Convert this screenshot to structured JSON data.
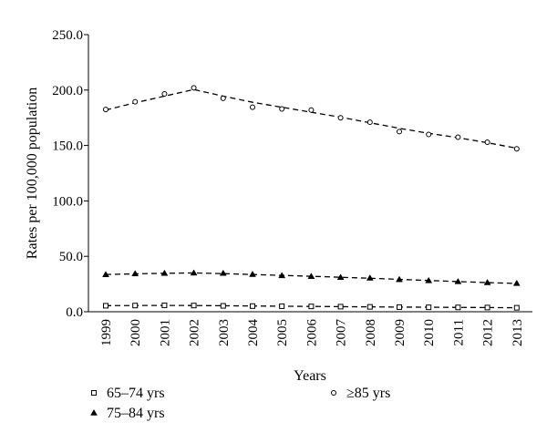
{
  "chart_data": {
    "type": "line",
    "x": [
      "1999",
      "2000",
      "2001",
      "2002",
      "2003",
      "2004",
      "2005",
      "2006",
      "2007",
      "2008",
      "2009",
      "2010",
      "2011",
      "2012",
      "2013"
    ],
    "xlabel": "Years",
    "ylabel": "Rates per 100,000 population",
    "ylim": [
      0,
      250
    ],
    "yticks": [
      "0.0",
      "50.0",
      "100.0",
      "150.0",
      "200.0",
      "250.0"
    ],
    "series": [
      {
        "name": "65–74 yrs",
        "marker": "square",
        "values": [
          5.4,
          5.6,
          5.8,
          5.6,
          5.3,
          5.1,
          5.0,
          4.8,
          4.6,
          4.4,
          4.2,
          4.0,
          3.9,
          3.8,
          3.6
        ],
        "trend": [
          5.5,
          5.6,
          5.7,
          5.6,
          5.4,
          5.2,
          5.0,
          4.8,
          4.6,
          4.4,
          4.2,
          4.1,
          3.9,
          3.8,
          3.6
        ]
      },
      {
        "name": "75–84 yrs",
        "marker": "triangle",
        "values": [
          33.5,
          34.3,
          34.7,
          35.0,
          34.7,
          33.7,
          32.6,
          31.9,
          31.0,
          30.4,
          29.1,
          28.1,
          27.2,
          26.3,
          25.6
        ],
        "trend": [
          33.6,
          34.2,
          34.7,
          35.0,
          34.4,
          33.6,
          32.8,
          32.0,
          31.1,
          30.2,
          29.2,
          28.2,
          27.2,
          26.3,
          25.5
        ]
      },
      {
        "name": "≥85 yrs",
        "marker": "circle",
        "values": [
          182.5,
          189.5,
          196.5,
          202.0,
          192.5,
          184.5,
          183.0,
          182.0,
          175.0,
          171.0,
          162.5,
          160.0,
          157.5,
          153.0,
          147.0
        ],
        "trend": [
          182.0,
          188.5,
          194.5,
          200.5,
          194.5,
          189.0,
          184.5,
          180.0,
          175.5,
          170.5,
          165.5,
          161.0,
          157.0,
          152.5,
          147.5
        ]
      }
    ],
    "legend": {
      "placement": "bottom"
    },
    "grid": false
  }
}
